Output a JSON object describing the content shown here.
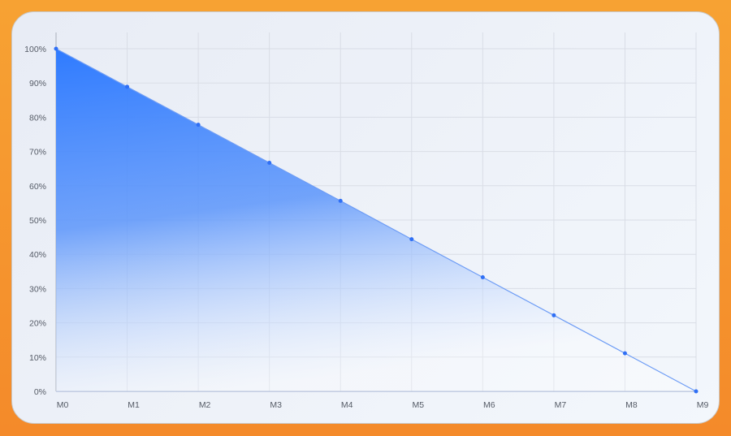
{
  "chart_data": {
    "type": "area",
    "title": "",
    "xlabel": "",
    "ylabel": "",
    "categories": [
      "M0",
      "M1",
      "M2",
      "M3",
      "M4",
      "M5",
      "M6",
      "M7",
      "M8",
      "M9"
    ],
    "values": [
      100,
      88.9,
      77.8,
      66.7,
      55.6,
      44.4,
      33.3,
      22.2,
      11.1,
      0
    ],
    "ylim": [
      0,
      100
    ],
    "yticks": [
      "0%",
      "10%",
      "20%",
      "30%",
      "40%",
      "50%",
      "60%",
      "70%",
      "80%",
      "90%",
      "100%"
    ],
    "grid": true,
    "colors": {
      "line": "#2f6ff5",
      "fill_top": "#2f7bff",
      "fill_bottom": "#ffffff",
      "grid": "#d9dde6",
      "frame": "#f7982f"
    }
  }
}
